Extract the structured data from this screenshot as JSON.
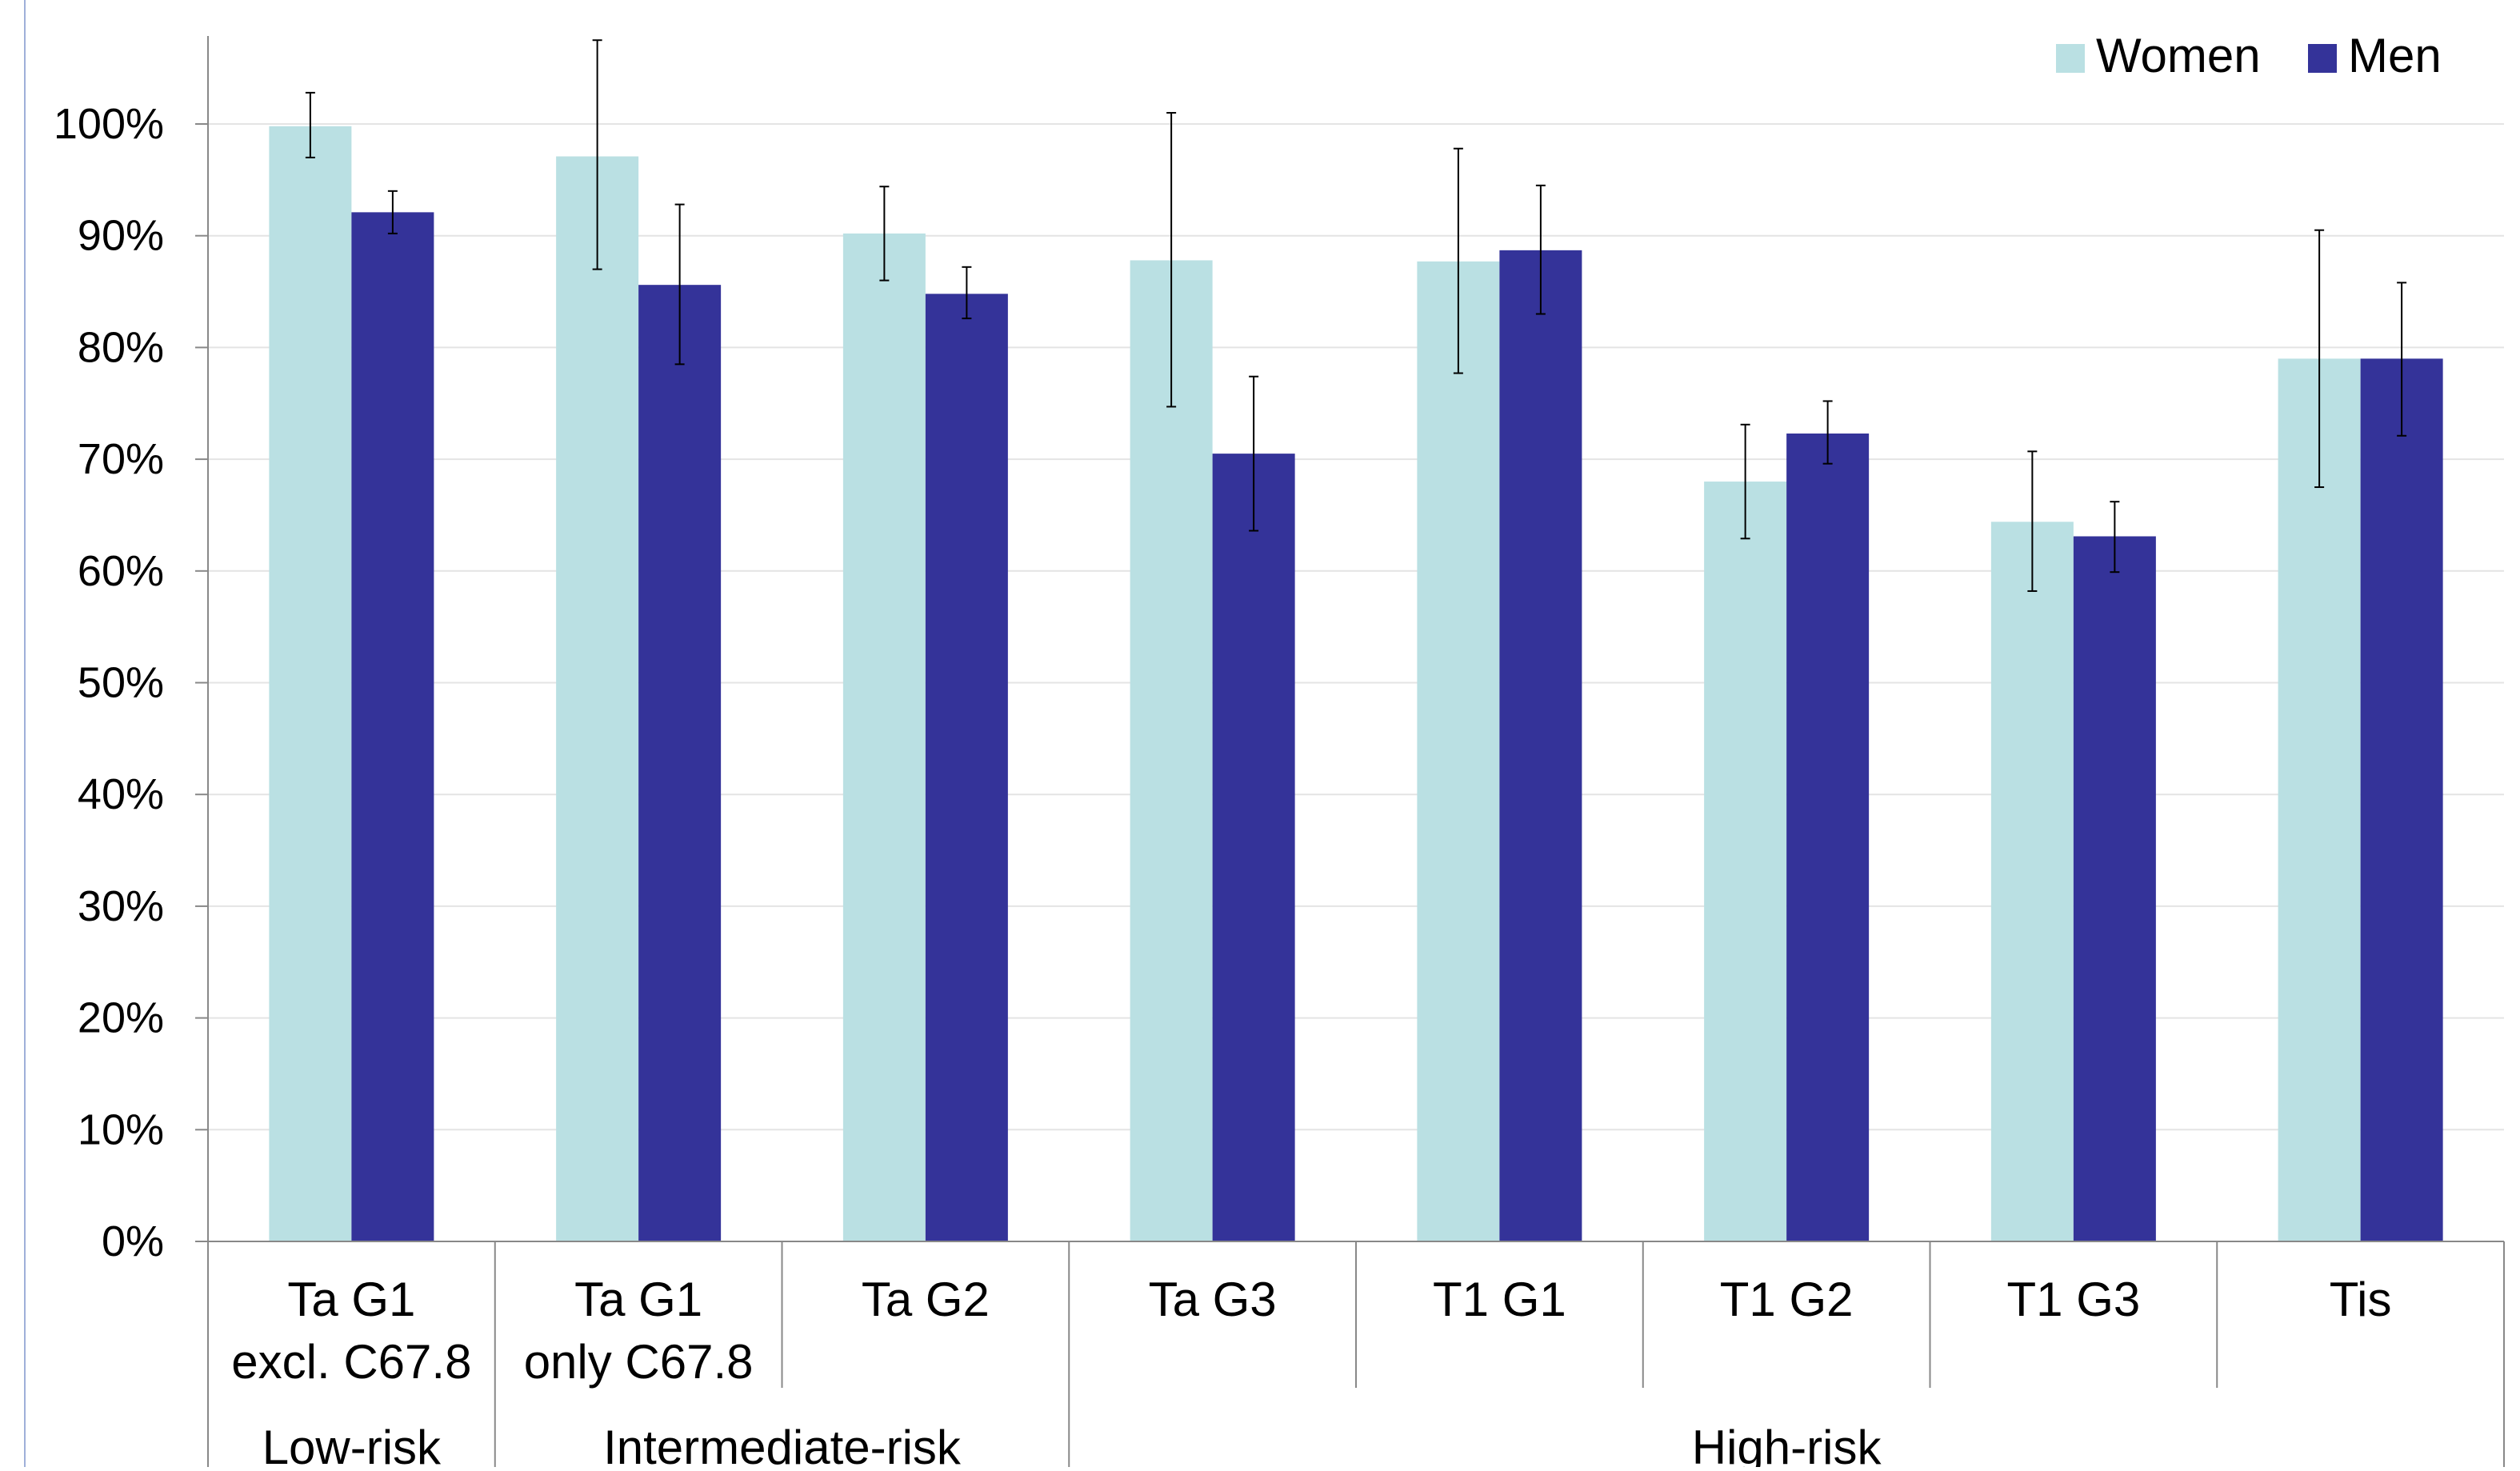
{
  "chart_data": {
    "type": "bar",
    "title": "",
    "xlabel": "",
    "ylabel": "",
    "ylim": [
      0,
      100
    ],
    "yticks": [
      "0%",
      "10%",
      "20%",
      "30%",
      "40%",
      "50%",
      "60%",
      "70%",
      "80%",
      "90%",
      "100%"
    ],
    "grid": true,
    "legend_position": "top-right",
    "categories": [
      [
        "Ta G1",
        "excl. C67.8"
      ],
      [
        "Ta G1",
        "only C67.8"
      ],
      [
        "Ta G2"
      ],
      [
        "Ta G3"
      ],
      [
        "T1 G1"
      ],
      [
        "T1 G2"
      ],
      [
        "T1 G3"
      ],
      [
        "Tis"
      ]
    ],
    "groups": [
      {
        "label": "Low-risk",
        "span": 1
      },
      {
        "label": "Intermediate-risk",
        "span": 2
      },
      {
        "label": "High-risk",
        "span": 5
      }
    ],
    "series": [
      {
        "name": "Women",
        "color": "#bae0e3",
        "values": [
          99.8,
          97.1,
          90.2,
          87.8,
          87.7,
          68.0,
          64.4,
          79.0
        ],
        "error_low": [
          97.0,
          87.0,
          86.0,
          74.7,
          77.7,
          62.9,
          58.2,
          67.5
        ],
        "error_high": [
          102.8,
          107.5,
          94.4,
          101.0,
          97.8,
          73.1,
          70.7,
          90.5
        ]
      },
      {
        "name": "Men",
        "color": "#343399",
        "values": [
          92.1,
          85.6,
          84.8,
          70.5,
          88.7,
          72.3,
          63.1,
          79.0
        ],
        "error_low": [
          90.2,
          78.5,
          82.6,
          63.6,
          83.0,
          69.6,
          59.9,
          72.1
        ],
        "error_high": [
          94.0,
          92.8,
          87.2,
          77.4,
          94.5,
          75.2,
          66.2,
          85.8
        ]
      }
    ]
  }
}
